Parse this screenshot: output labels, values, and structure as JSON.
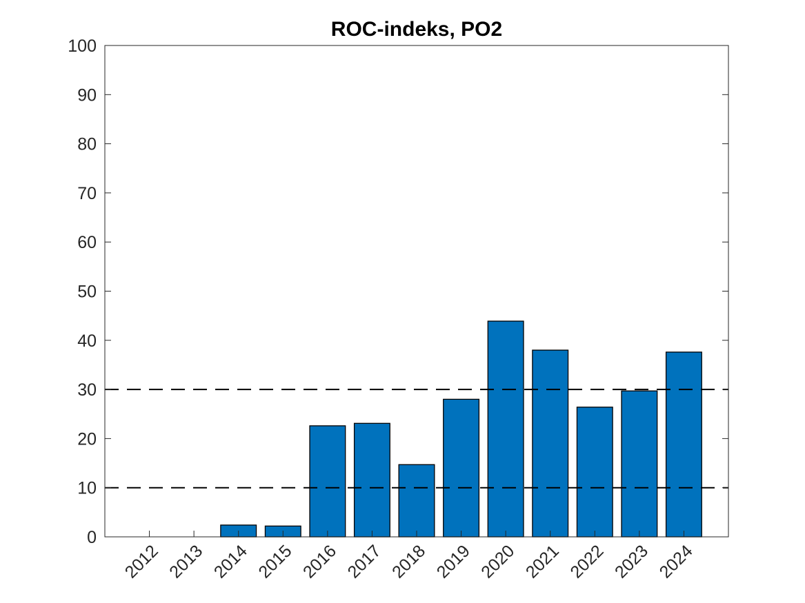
{
  "chart_data": {
    "type": "bar",
    "title": "ROC-indeks, PO2",
    "xlabel": "",
    "ylabel": "",
    "categories": [
      "2012",
      "2013",
      "2014",
      "2015",
      "2016",
      "2017",
      "2018",
      "2019",
      "2020",
      "2021",
      "2022",
      "2023",
      "2024"
    ],
    "values": [
      0,
      0,
      2.4,
      2.2,
      22.6,
      23.1,
      14.7,
      28.0,
      43.9,
      38.0,
      26.4,
      29.7,
      37.6
    ],
    "ylim": [
      0,
      100
    ],
    "yticks": [
      0,
      10,
      20,
      30,
      40,
      50,
      60,
      70,
      80,
      90,
      100
    ],
    "reference_lines": [
      {
        "y": 10,
        "style": "dashed",
        "color": "#000000"
      },
      {
        "y": 30,
        "style": "dashed",
        "color": "#000000"
      }
    ],
    "bar_color": "#0072BD",
    "grid": false,
    "legend": null
  }
}
